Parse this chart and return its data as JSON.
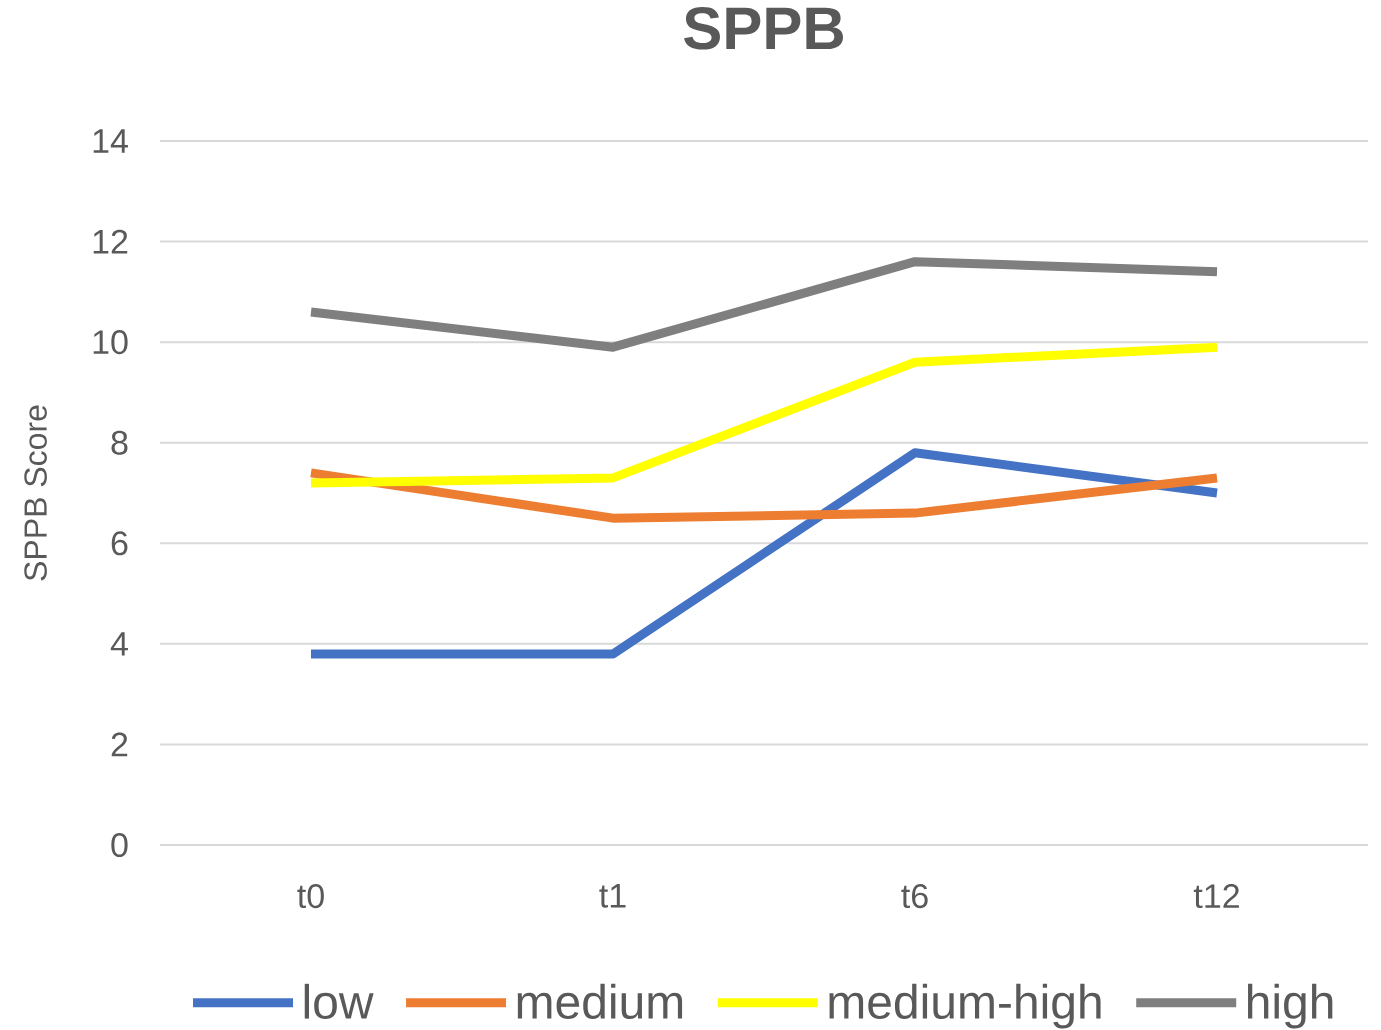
{
  "chart_data": {
    "type": "line",
    "title": "SPPB",
    "ylabel": "SPPB Score",
    "categories": [
      "t0",
      "t1",
      "t6",
      "t12"
    ],
    "series": [
      {
        "name": "low",
        "color": "#4472c4",
        "values": [
          3.8,
          3.8,
          7.8,
          7.0
        ]
      },
      {
        "name": "medium",
        "color": "#ed7d31",
        "values": [
          7.4,
          6.5,
          6.6,
          7.3
        ]
      },
      {
        "name": "medium-high",
        "color": "#ffff00",
        "values": [
          7.2,
          7.3,
          9.6,
          9.9
        ]
      },
      {
        "name": "high",
        "color": "#7f7f7f",
        "values": [
          10.6,
          9.9,
          11.6,
          11.4
        ]
      }
    ],
    "ylim": [
      0,
      14
    ],
    "yticks": [
      0,
      2,
      4,
      6,
      8,
      10,
      12,
      14
    ],
    "grid": "y",
    "legend": "bottom"
  }
}
